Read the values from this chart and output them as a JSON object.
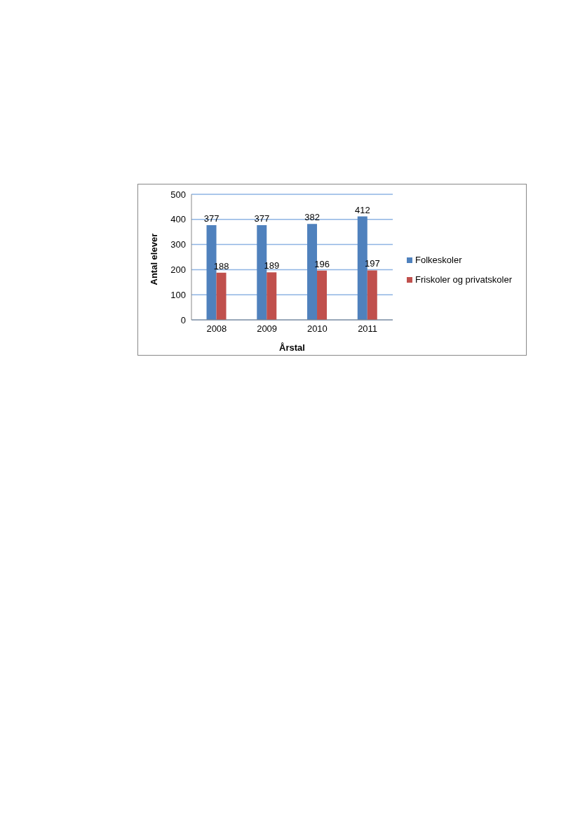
{
  "chart_data": {
    "type": "bar",
    "xlabel": "Årstal",
    "ylabel": "Antal elever",
    "categories": [
      "2008",
      "2009",
      "2010",
      "2011"
    ],
    "series": [
      {
        "name": "Folkeskoler",
        "color": "#4f81bd",
        "values": [
          377,
          377,
          382,
          412
        ]
      },
      {
        "name": "Friskoler og privatskoler",
        "color": "#c0504d",
        "values": [
          188,
          189,
          196,
          197
        ]
      }
    ],
    "ylim": [
      0,
      500
    ],
    "yticks": [
      0,
      100,
      200,
      300,
      400,
      500
    ],
    "grid": "y",
    "legend": "right",
    "data_labels": true
  }
}
